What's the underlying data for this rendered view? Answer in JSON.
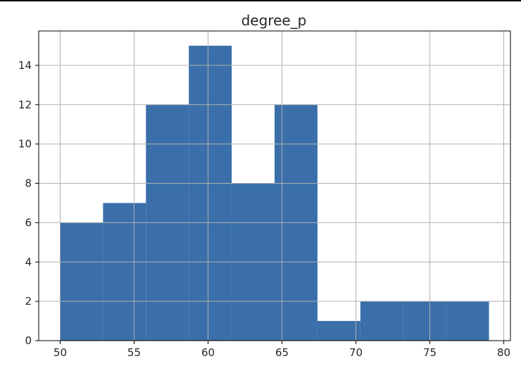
{
  "chart_data": {
    "type": "bar",
    "title": "degree_p",
    "xlabel": "",
    "ylabel": "",
    "bins": [
      {
        "x0": 50.0,
        "x1": 52.9,
        "count": 6
      },
      {
        "x0": 52.9,
        "x1": 55.8,
        "count": 7
      },
      {
        "x0": 55.8,
        "x1": 58.7,
        "count": 12
      },
      {
        "x0": 58.7,
        "x1": 61.6,
        "count": 15
      },
      {
        "x0": 61.6,
        "x1": 64.5,
        "count": 8
      },
      {
        "x0": 64.5,
        "x1": 67.4,
        "count": 12
      },
      {
        "x0": 67.4,
        "x1": 70.3,
        "count": 1
      },
      {
        "x0": 70.3,
        "x1": 73.2,
        "count": 2
      },
      {
        "x0": 73.2,
        "x1": 76.1,
        "count": 2
      },
      {
        "x0": 76.1,
        "x1": 79.0,
        "count": 2
      }
    ],
    "xlim": [
      48.55,
      80.45
    ],
    "ylim": [
      0,
      15.75
    ],
    "xticks": [
      50,
      55,
      60,
      65,
      70,
      75,
      80
    ],
    "yticks": [
      0,
      2,
      4,
      6,
      8,
      10,
      12,
      14
    ],
    "grid": true,
    "bar_color": "#3a6faa",
    "grid_color": "#b0b0b0"
  }
}
